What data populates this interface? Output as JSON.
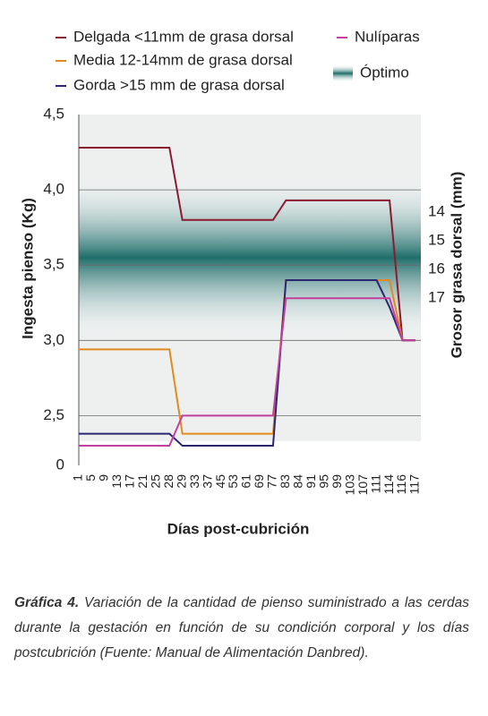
{
  "chart_data": {
    "type": "line",
    "categories": [
      "1",
      "5",
      "9",
      "13",
      "17",
      "21",
      "25",
      "28",
      "29",
      "33",
      "37",
      "45",
      "53",
      "61",
      "69",
      "77",
      "83",
      "84",
      "91",
      "95",
      "99",
      "103",
      "107",
      "111",
      "114",
      "116",
      "117"
    ],
    "series": [
      {
        "name": "Delgada <11mm de grasa dorsal",
        "color": "#8b1a2e",
        "values": [
          4.28,
          4.28,
          4.28,
          4.28,
          4.28,
          4.28,
          4.28,
          4.28,
          3.8,
          3.8,
          3.8,
          3.8,
          3.8,
          3.8,
          3.8,
          3.8,
          3.93,
          3.93,
          3.93,
          3.93,
          3.93,
          3.93,
          3.93,
          3.93,
          3.93,
          3.0,
          3.0
        ]
      },
      {
        "name": "Media 12-14mm de grasa dorsal",
        "color": "#e28a1c",
        "values": [
          2.94,
          2.94,
          2.94,
          2.94,
          2.94,
          2.94,
          2.94,
          2.94,
          2.38,
          2.38,
          2.38,
          2.38,
          2.38,
          2.38,
          2.38,
          2.38,
          3.4,
          3.4,
          3.4,
          3.4,
          3.4,
          3.4,
          3.4,
          3.4,
          3.4,
          3.0,
          3.0
        ]
      },
      {
        "name": "Gorda >15 mm de grasa dorsal",
        "color": "#2b2672",
        "values": [
          2.38,
          2.38,
          2.38,
          2.38,
          2.38,
          2.38,
          2.38,
          2.38,
          2.3,
          2.3,
          2.3,
          2.3,
          2.3,
          2.3,
          2.3,
          2.3,
          3.4,
          3.4,
          3.4,
          3.4,
          3.4,
          3.4,
          3.4,
          3.4,
          3.22,
          3.0,
          3.0
        ]
      },
      {
        "name": "Nulíparas",
        "color": "#c2409e",
        "values": [
          2.3,
          2.3,
          2.3,
          2.3,
          2.3,
          2.3,
          2.3,
          2.3,
          2.5,
          2.5,
          2.5,
          2.5,
          2.5,
          2.5,
          2.5,
          2.5,
          3.28,
          3.28,
          3.28,
          3.28,
          3.28,
          3.28,
          3.28,
          3.28,
          3.28,
          3.0,
          3.0
        ]
      }
    ],
    "optimal_band": {
      "label": "Óptimo",
      "range": [
        3.0,
        4.1
      ]
    },
    "ylabel": "Ingesta pienso (Kg)",
    "y2label": "Grosor grasa dorsal (mm)",
    "xlabel": "Días post-cubrición",
    "ylim": [
      2.33,
      4.5
    ],
    "yticks": [
      0,
      {
        "value": 2.5,
        "label": "2,5"
      },
      {
        "value": 3.0,
        "label": "3,0"
      },
      {
        "value": 3.5,
        "label": "3,5"
      },
      {
        "value": 4.0,
        "label": "4,0"
      },
      {
        "value": 4.5,
        "label": "4,5"
      }
    ],
    "y2lim": [
      22.0,
      10.6
    ],
    "y2ticks": [
      14,
      15,
      16,
      17
    ],
    "grid": true
  },
  "caption": {
    "label": "Gráfica 4.",
    "text": "Variación de la cantidad de pienso suministrado a las cerdas durante la gestación en función de su condición corporal y los días postcubrición (Fuente: Manual de Alimentación Danbred)."
  }
}
